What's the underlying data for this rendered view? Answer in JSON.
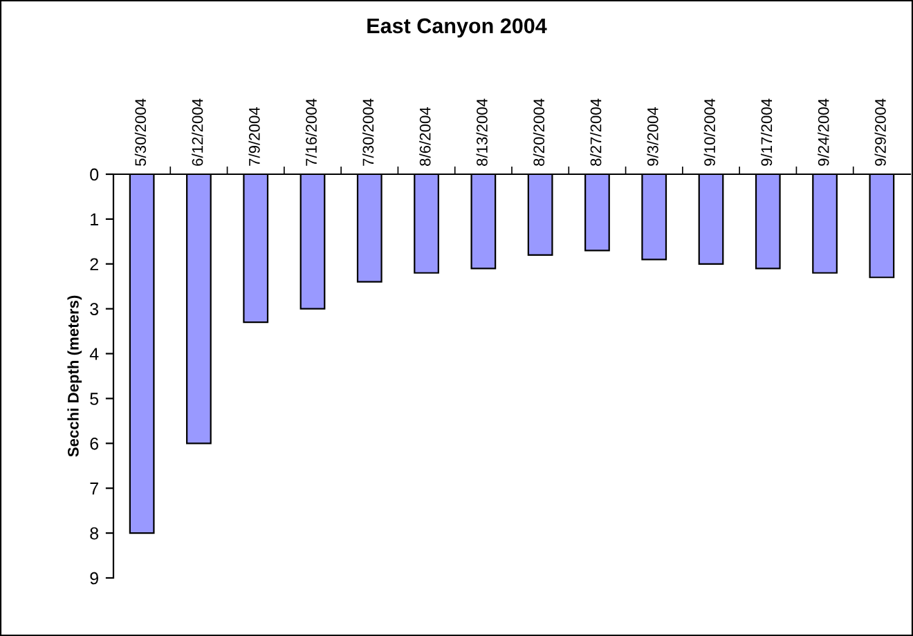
{
  "chart_data": {
    "type": "bar",
    "title": "East Canyon 2004",
    "ylabel": "Secchi Depth (meters)",
    "categories": [
      "5/30/2004",
      "6/12/2004",
      "7/9/2004",
      "7/16/2004",
      "7/30/2004",
      "8/6/2004",
      "8/13/2004",
      "8/20/2004",
      "8/27/2004",
      "9/3/2004",
      "9/10/2004",
      "9/17/2004",
      "9/24/2004",
      "9/29/2004"
    ],
    "values": [
      8,
      6,
      3.3,
      3.0,
      2.4,
      2.2,
      2.1,
      1.8,
      1.7,
      1.9,
      2.0,
      2.1,
      2.2,
      2.3
    ],
    "color": "#9999ff",
    "ylim": [
      9,
      0
    ],
    "yticks": [
      0,
      1,
      2,
      3,
      4,
      5,
      6,
      7,
      8,
      9
    ],
    "grid": false,
    "legend": false
  }
}
